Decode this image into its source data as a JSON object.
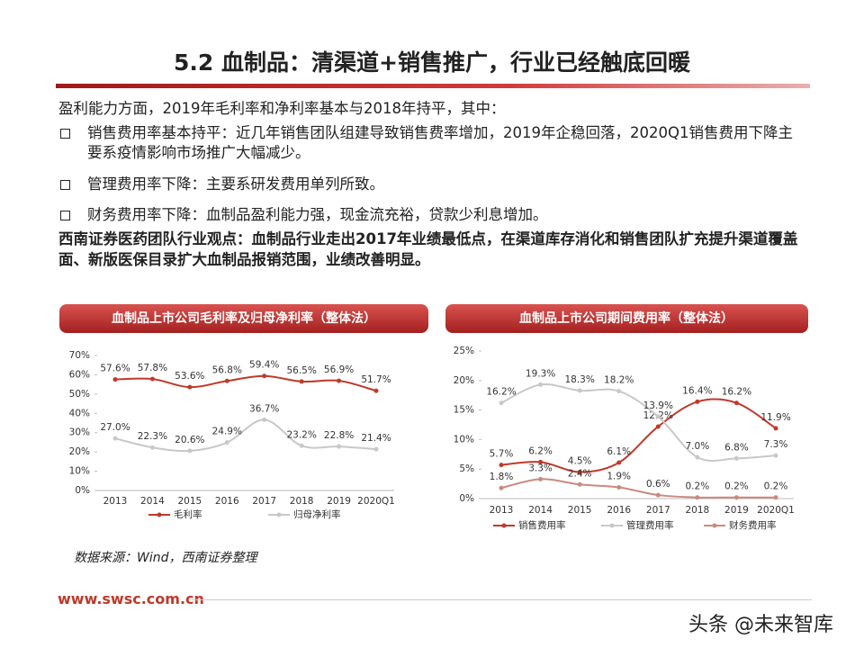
{
  "header": {
    "title": "5.2 血制品：清渠道+销售推广，行业已经触底回暖"
  },
  "body": {
    "intro": "盈利能力方面，2019年毛利率和净利率基本与2018年持平，其中：",
    "bullets": [
      "销售费用率基本持平：近几年销售团队组建导致销售费率增加，2019年企稳回落，2020Q1销售费用下降主要系疫情影响市场推广大幅减少。",
      "管理费用率下降：主要系研发费用单列所致。",
      "财务费用率下降：血制品盈利能力强，现金流充裕，贷款少利息增加。"
    ],
    "view": "西南证券医药团队行业观点：血制品行业走出2017年业绩最低点，在渠道库存消化和销售团队扩充提升渠道覆盖面、新版医保目录扩大血制品报销范围，业绩改善明显。"
  },
  "chart_data": [
    {
      "type": "line",
      "title": "血制品上市公司毛利率及归母净利率（整体法）",
      "categories": [
        "2013",
        "2014",
        "2015",
        "2016",
        "2017",
        "2018",
        "2019",
        "2020Q1"
      ],
      "series": [
        {
          "name": "毛利率",
          "color": "#c0392b",
          "values": [
            57.6,
            57.8,
            53.6,
            56.8,
            59.4,
            56.5,
            56.9,
            51.7
          ],
          "value_labels": [
            "57.6%",
            "57.8%",
            "53.6%",
            "56.8%",
            "59.4%",
            "56.5%",
            "56.9%",
            "51.7%"
          ]
        },
        {
          "name": "归母净利率",
          "color": "#c8c8c8",
          "values": [
            27.0,
            22.3,
            20.6,
            24.9,
            36.7,
            23.2,
            22.8,
            21.4
          ],
          "value_labels": [
            "27.0%",
            "22.3%",
            "20.6%",
            "24.9%",
            "36.7%",
            "23.2%",
            "22.8%",
            "21.4%"
          ]
        }
      ],
      "ylim": [
        0,
        70
      ],
      "yticks": [
        {
          "value": 0,
          "label": "0%"
        },
        {
          "value": 10,
          "label": "10%"
        },
        {
          "value": 20,
          "label": "20%"
        },
        {
          "value": 30,
          "label": "30%"
        },
        {
          "value": 40,
          "label": "40%"
        },
        {
          "value": 50,
          "label": "50%"
        },
        {
          "value": 60,
          "label": "60%"
        },
        {
          "value": 70,
          "label": "70%"
        }
      ],
      "grid": false
    },
    {
      "type": "line",
      "title": "血制品上市公司期间费用率（整体法）",
      "categories": [
        "2013",
        "2014",
        "2015",
        "2016",
        "2017",
        "2018",
        "2019",
        "2020Q1"
      ],
      "series": [
        {
          "name": "销售费用率",
          "color": "#c0392b",
          "values": [
            5.7,
            6.2,
            4.5,
            6.1,
            12.2,
            16.4,
            16.2,
            11.9
          ],
          "value_labels": [
            "5.7%",
            "6.2%",
            "4.5%",
            "6.1%",
            "12.2%",
            "16.4%",
            "16.2%",
            "11.9%"
          ]
        },
        {
          "name": "管理费用率",
          "color": "#c8c8c8",
          "values": [
            16.2,
            19.3,
            18.3,
            18.2,
            13.9,
            7.0,
            6.8,
            7.3
          ],
          "value_labels": [
            "16.2%",
            "19.3%",
            "18.3%",
            "18.2%",
            "13.9%",
            "7.0%",
            "6.8%",
            "7.3%"
          ]
        },
        {
          "name": "财务费用率",
          "color": "#c98a80",
          "values": [
            1.8,
            3.3,
            2.4,
            1.9,
            0.6,
            0.2,
            0.2,
            0.2
          ],
          "value_labels": [
            "1.8%",
            "3.3%",
            "2.4%",
            "1.9%",
            "0.6%",
            "0.2%",
            "0.2%",
            "0.2%"
          ]
        }
      ],
      "ylim": [
        0,
        25
      ],
      "yticks": [
        {
          "value": 0,
          "label": "0%"
        },
        {
          "value": 5,
          "label": "5%"
        },
        {
          "value": 10,
          "label": "10%"
        },
        {
          "value": 15,
          "label": "15%"
        },
        {
          "value": 20,
          "label": "20%"
        },
        {
          "value": 25,
          "label": "25%"
        }
      ],
      "grid": false
    }
  ],
  "source": "数据来源：Wind，西南证券整理",
  "footer": {
    "url": "www.swsc.com.cn",
    "watermark": "头条 @未来智库"
  }
}
